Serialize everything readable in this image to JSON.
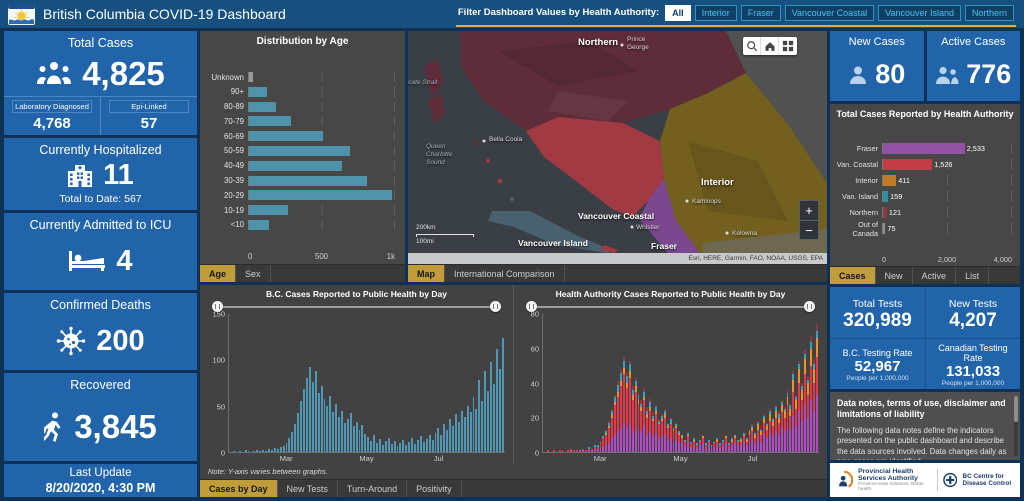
{
  "header": {
    "title": "British Columbia COVID-19 Dashboard",
    "filter_label": "Filter Dashboard Values by Health Authority:",
    "filters": [
      "All",
      "Interior",
      "Fraser",
      "Vancouver Coastal",
      "Vancouver Island",
      "Northern"
    ],
    "active_filter": "All",
    "accent_color": "#e9a93c"
  },
  "left_column": {
    "total_cases": {
      "title": "Total Cases",
      "value": "4,825",
      "lab_label": "Laboratory Diagnosed",
      "lab_value": "4,768",
      "epi_label": "Epi-Linked",
      "epi_value": "57"
    },
    "hospitalized": {
      "title": "Currently Hospitalized",
      "value": "11",
      "total_to_date": "Total to Date: 567"
    },
    "icu": {
      "title": "Currently Admitted to ICU",
      "value": "4"
    },
    "deaths": {
      "title": "Confirmed Deaths",
      "value": "200"
    },
    "recovered": {
      "title": "Recovered",
      "value": "3,845"
    },
    "last_update": {
      "title": "Last Update",
      "value": "8/20/2020, 4:30 PM"
    }
  },
  "age_panel": {
    "tabs": [
      "Age",
      "Sex"
    ],
    "active_tab": "Age"
  },
  "map_panel": {
    "labels": {
      "northern": "Northern",
      "prince_george": "Prince George",
      "hecate_strait": "Hecate Strait",
      "queen_charlotte": "Queen Charlotte Sound",
      "bella_coola": "Bella Coola",
      "interior": "Interior",
      "kamloops": "Kamloops",
      "vancouver_coastal": "Vancouver Coastal",
      "whistler": "Whistler",
      "kelowna": "Kelowna",
      "vancouver_island": "Vancouver Island",
      "fraser": "Fraser"
    },
    "scale_km": "200km",
    "scale_mi": "100mi",
    "attribution": "Esri, HERE, Garmin, FAO, NOAA, USGS, EPA",
    "zoom_in": "+",
    "zoom_out": "−",
    "tabs": [
      "Map",
      "International Comparison"
    ],
    "active_tab": "Map"
  },
  "right_column": {
    "new_cases": {
      "title": "New Cases",
      "value": "80"
    },
    "active_cases": {
      "title": "Active Cases",
      "value": "776"
    },
    "ha_panel": {
      "tabs": [
        "Cases",
        "New",
        "Active",
        "List"
      ],
      "active_tab": "Cases"
    },
    "tests": {
      "total_title": "Total Tests",
      "total_value": "320,989",
      "new_title": "New Tests",
      "new_value": "4,207",
      "bc_rate_title": "B.C. Testing Rate",
      "bc_rate_value": "52,967",
      "bc_rate_unit": "People per 1,000,000",
      "cdn_rate_title": "Canadian Testing Rate",
      "cdn_rate_value": "131,033",
      "cdn_rate_unit": "People per 1,000,000"
    },
    "notes": {
      "title": "Data notes, terms of use, disclaimer and limitations of liability",
      "body": "The following data notes define the indicators presented on the public dashboard and describe the data sources involved. Data changes daily as new cases are identified"
    },
    "logos": {
      "phsa_name": "Provincial Health Services Authority",
      "phsa_tagline": "Province-wide solutions. Better health.",
      "bccdc_name": "BC Centre for Disease Control"
    }
  },
  "bottom_panel": {
    "note": "Note: Y-axis varies between graphs.",
    "tabs": [
      "Cases by Day",
      "New Tests",
      "Turn-Around",
      "Positivity"
    ],
    "active_tab": "Cases by Day"
  },
  "chart_data": [
    {
      "id": "age_distribution",
      "type": "bar",
      "orientation": "horizontal",
      "title": "Distribution by Age",
      "categories": [
        "Unknown",
        "90+",
        "80-89",
        "70-79",
        "60-69",
        "50-59",
        "40-49",
        "30-39",
        "20-29",
        "10-19",
        "<10"
      ],
      "values": [
        30,
        120,
        185,
        290,
        505,
        695,
        640,
        810,
        980,
        265,
        140
      ],
      "xlim": [
        0,
        1000
      ],
      "xtick_labels": [
        "0",
        "500",
        "1k"
      ],
      "bar_color": "#4f93ab",
      "unknown_color": "#9a9a9a",
      "grid": true
    },
    {
      "id": "ha_totals",
      "type": "bar",
      "orientation": "horizontal",
      "title": "Total Cases Reported by Health Authority",
      "categories": [
        "Fraser",
        "Van. Coastal",
        "Interior",
        "Van. Island",
        "Northern",
        "Out of Canada"
      ],
      "values": [
        2533,
        1526,
        411,
        159,
        121,
        75
      ],
      "value_labels": [
        "2,533",
        "1,526",
        "411",
        "159",
        "121",
        "75"
      ],
      "colors": [
        "#9453a2",
        "#c23b45",
        "#c07a28",
        "#2f8fa3",
        "#8c3a4a",
        "#8f8f8f"
      ],
      "xlim": [
        0,
        4000
      ],
      "xtick_labels": [
        "0",
        "2,000",
        "4,000"
      ],
      "grid": true
    },
    {
      "id": "bc_daily_cases",
      "type": "bar",
      "title": "B.C. Cases Reported to Public Health by Day",
      "ylim": [
        0,
        150
      ],
      "ytick_labels": [
        "0",
        "50",
        "100",
        "150"
      ],
      "xtick_labels": [
        "Mar",
        "May",
        "Jul"
      ],
      "bar_color": "#4f97b5",
      "values": [
        0,
        1,
        0,
        1,
        0,
        2,
        1,
        0,
        1,
        2,
        1,
        2,
        1,
        3,
        2,
        4,
        3,
        5,
        7,
        10,
        15,
        22,
        30,
        42,
        55,
        68,
        80,
        92,
        76,
        88,
        64,
        72,
        58,
        50,
        61,
        44,
        52,
        38,
        45,
        31,
        36,
        42,
        28,
        33,
        24,
        29,
        20,
        16,
        12,
        18,
        10,
        14,
        8,
        12,
        15,
        9,
        12,
        7,
        10,
        13,
        8,
        11,
        15,
        9,
        13,
        17,
        11,
        14,
        19,
        13,
        21,
        26,
        19,
        30,
        24,
        36,
        28,
        41,
        33,
        45,
        38,
        50,
        43,
        60,
        47,
        78,
        55,
        88,
        66,
        98,
        74,
        112,
        90,
        124
      ]
    },
    {
      "id": "ha_daily_cases",
      "type": "bar",
      "stacked": true,
      "title": "Health Authority Cases Reported to Public Health by Day",
      "ylim": [
        0,
        80
      ],
      "ytick_labels": [
        "0",
        "20",
        "40",
        "60",
        "80"
      ],
      "xtick_labels": [
        "Mar",
        "May",
        "Jul"
      ],
      "series": [
        {
          "name": "Fraser",
          "color": "#b14cc4",
          "values": [
            0,
            0,
            0,
            0,
            0,
            0,
            0,
            0,
            0,
            1,
            0,
            0,
            1,
            1,
            0,
            1,
            1,
            1,
            1,
            2,
            3,
            4,
            5,
            8,
            10,
            12,
            14,
            17,
            14,
            16,
            11,
            13,
            14,
            12,
            15,
            10,
            12,
            9,
            11,
            8,
            9,
            10,
            7,
            8,
            6,
            7,
            6,
            5,
            4,
            6,
            3,
            4,
            2,
            4,
            5,
            2,
            4,
            2,
            3,
            4,
            2,
            4,
            5,
            2,
            4,
            5,
            4,
            4,
            6,
            4,
            6,
            7,
            5,
            8,
            6,
            10,
            8,
            11,
            9,
            12,
            10,
            14,
            12,
            16,
            13,
            21,
            15,
            24,
            18,
            27,
            20,
            30,
            24,
            33
          ]
        },
        {
          "name": "Vancouver Coastal",
          "color": "#e8374a",
          "values": [
            0,
            1,
            0,
            1,
            0,
            1,
            1,
            0,
            1,
            1,
            1,
            1,
            0,
            1,
            1,
            1,
            1,
            2,
            2,
            3,
            5,
            6,
            9,
            12,
            17,
            20,
            24,
            28,
            23,
            27,
            19,
            22,
            14,
            12,
            15,
            10,
            12,
            9,
            11,
            8,
            9,
            10,
            7,
            8,
            6,
            7,
            4,
            3,
            2,
            3,
            2,
            2,
            2,
            2,
            3,
            2,
            2,
            1,
            2,
            2,
            2,
            2,
            3,
            2,
            2,
            3,
            2,
            2,
            3,
            2,
            4,
            5,
            3,
            5,
            4,
            7,
            5,
            7,
            6,
            8,
            7,
            9,
            8,
            11,
            8,
            14,
            10,
            16,
            12,
            18,
            13,
            20,
            16,
            22
          ]
        },
        {
          "name": "Interior",
          "color": "#f09026",
          "values": [
            0,
            0,
            0,
            0,
            0,
            0,
            0,
            0,
            0,
            0,
            0,
            0,
            0,
            0,
            0,
            0,
            0,
            0,
            0,
            0,
            0,
            1,
            1,
            2,
            2,
            3,
            3,
            4,
            3,
            4,
            3,
            3,
            2,
            2,
            2,
            2,
            2,
            1,
            2,
            1,
            1,
            2,
            1,
            1,
            1,
            1,
            1,
            1,
            0,
            1,
            0,
            1,
            0,
            0,
            1,
            0,
            0,
            0,
            0,
            1,
            0,
            0,
            1,
            0,
            1,
            1,
            0,
            1,
            1,
            1,
            2,
            2,
            2,
            3,
            2,
            3,
            2,
            4,
            3,
            4,
            3,
            4,
            4,
            5,
            4,
            7,
            5,
            8,
            6,
            9,
            7,
            10,
            8,
            11
          ]
        },
        {
          "name": "Vancouver Island",
          "color": "#33a3c4",
          "values": [
            0,
            0,
            0,
            0,
            0,
            0,
            0,
            0,
            0,
            0,
            0,
            0,
            0,
            0,
            0,
            1,
            0,
            1,
            1,
            1,
            1,
            1,
            2,
            2,
            3,
            4,
            5,
            4,
            4,
            4,
            3,
            3,
            3,
            2,
            3,
            2,
            3,
            2,
            2,
            1,
            2,
            2,
            1,
            2,
            1,
            1,
            1,
            1,
            1,
            1,
            1,
            1,
            1,
            1,
            0,
            1,
            1,
            1,
            1,
            1,
            1,
            1,
            0,
            1,
            1,
            1,
            1,
            1,
            1,
            1,
            1,
            1,
            1,
            1,
            1,
            1,
            1,
            2,
            1,
            2,
            2,
            2,
            1,
            2,
            2,
            3,
            2,
            3,
            2,
            3,
            2,
            4,
            3,
            4
          ]
        },
        {
          "name": "Northern",
          "color": "#8c3a4a",
          "values": [
            0,
            0,
            0,
            0,
            0,
            0,
            0,
            0,
            0,
            0,
            0,
            0,
            0,
            0,
            0,
            0,
            0,
            0,
            0,
            0,
            0,
            1,
            1,
            1,
            1,
            2,
            2,
            2,
            2,
            2,
            2,
            2,
            2,
            2,
            2,
            2,
            2,
            2,
            1,
            1,
            1,
            1,
            1,
            1,
            0,
            1,
            0,
            0,
            0,
            0,
            0,
            0,
            0,
            0,
            0,
            0,
            0,
            0,
            0,
            0,
            0,
            0,
            0,
            0,
            0,
            0,
            0,
            0,
            0,
            0,
            0,
            1,
            0,
            1,
            1,
            1,
            1,
            1,
            1,
            1,
            1,
            1,
            1,
            2,
            1,
            2,
            1,
            2,
            2,
            2,
            2,
            3,
            3,
            4
          ]
        }
      ]
    }
  ]
}
